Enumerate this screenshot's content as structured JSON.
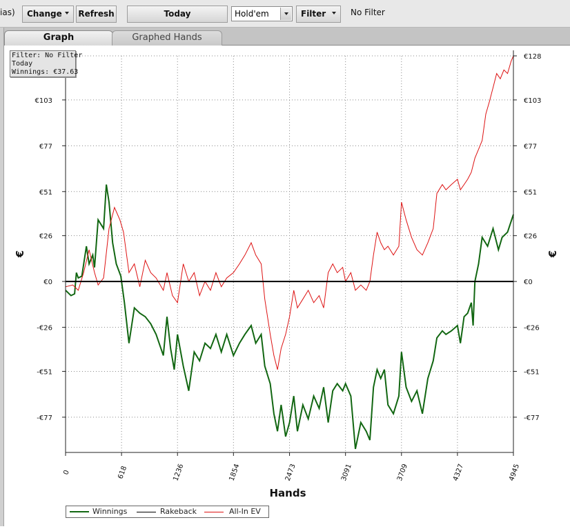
{
  "toolbar": {
    "alias_text": "ias)",
    "change_label": "Change",
    "refresh_label": "Refresh",
    "today_label": "Today",
    "game_value": "Hold'em",
    "filter_label": "Filter",
    "filter_status": "No Filter"
  },
  "tabs": [
    {
      "label": "Graph",
      "active": true
    },
    {
      "label": "Graphed Hands",
      "active": false
    }
  ],
  "info_box": {
    "filter": "Filter: No Filter",
    "period": "Today",
    "winnings": "Winnings: €37.63"
  },
  "colors": {
    "winnings": "#116611",
    "rakeback": "#000000",
    "allin_ev": "#dd1111",
    "grid": "#888888"
  },
  "chart_data": {
    "type": "line",
    "xlabel": "Hands",
    "ylabel": "€",
    "xlim": [
      0,
      4945
    ],
    "ylim": [
      -97,
      128
    ],
    "x_ticks": [
      0,
      618,
      1236,
      1854,
      2473,
      3091,
      3709,
      4327,
      4945
    ],
    "y_ticks": [
      {
        "value": 128,
        "label": "€128"
      },
      {
        "value": 103,
        "label": "€103"
      },
      {
        "value": 77,
        "label": "€77"
      },
      {
        "value": 51,
        "label": "€51"
      },
      {
        "value": 26,
        "label": "€26"
      },
      {
        "value": 0,
        "label": "€0"
      },
      {
        "value": -26,
        "label": "-€26"
      },
      {
        "value": -51,
        "label": "-€51"
      },
      {
        "value": -77,
        "label": "-€77"
      }
    ],
    "grid": true,
    "legend_position": "bottom-left",
    "series": [
      {
        "name": "Winnings",
        "points": [
          [
            0,
            -5
          ],
          [
            60,
            -8
          ],
          [
            100,
            -7
          ],
          [
            120,
            5
          ],
          [
            140,
            2
          ],
          [
            180,
            3
          ],
          [
            230,
            20
          ],
          [
            260,
            10
          ],
          [
            300,
            15
          ],
          [
            320,
            8
          ],
          [
            360,
            35
          ],
          [
            420,
            30
          ],
          [
            450,
            55
          ],
          [
            480,
            45
          ],
          [
            520,
            22
          ],
          [
            560,
            10
          ],
          [
            610,
            3
          ],
          [
            650,
            -12
          ],
          [
            700,
            -35
          ],
          [
            760,
            -15
          ],
          [
            820,
            -18
          ],
          [
            880,
            -20
          ],
          [
            940,
            -24
          ],
          [
            1000,
            -30
          ],
          [
            1080,
            -42
          ],
          [
            1120,
            -20
          ],
          [
            1160,
            -38
          ],
          [
            1200,
            -50
          ],
          [
            1236,
            -30
          ],
          [
            1300,
            -48
          ],
          [
            1360,
            -62
          ],
          [
            1420,
            -40
          ],
          [
            1480,
            -45
          ],
          [
            1540,
            -35
          ],
          [
            1600,
            -38
          ],
          [
            1660,
            -30
          ],
          [
            1720,
            -40
          ],
          [
            1780,
            -30
          ],
          [
            1854,
            -42
          ],
          [
            1920,
            -35
          ],
          [
            1980,
            -30
          ],
          [
            2050,
            -25
          ],
          [
            2100,
            -35
          ],
          [
            2160,
            -30
          ],
          [
            2200,
            -48
          ],
          [
            2260,
            -58
          ],
          [
            2300,
            -75
          ],
          [
            2340,
            -85
          ],
          [
            2380,
            -70
          ],
          [
            2430,
            -88
          ],
          [
            2473,
            -80
          ],
          [
            2520,
            -65
          ],
          [
            2560,
            -85
          ],
          [
            2620,
            -70
          ],
          [
            2680,
            -78
          ],
          [
            2740,
            -65
          ],
          [
            2800,
            -72
          ],
          [
            2850,
            -60
          ],
          [
            2900,
            -80
          ],
          [
            2950,
            -62
          ],
          [
            3000,
            -58
          ],
          [
            3060,
            -62
          ],
          [
            3091,
            -58
          ],
          [
            3150,
            -65
          ],
          [
            3200,
            -95
          ],
          [
            3260,
            -80
          ],
          [
            3320,
            -85
          ],
          [
            3360,
            -90
          ],
          [
            3400,
            -60
          ],
          [
            3440,
            -50
          ],
          [
            3480,
            -55
          ],
          [
            3520,
            -50
          ],
          [
            3560,
            -70
          ],
          [
            3620,
            -75
          ],
          [
            3680,
            -65
          ],
          [
            3709,
            -40
          ],
          [
            3760,
            -60
          ],
          [
            3820,
            -68
          ],
          [
            3880,
            -62
          ],
          [
            3940,
            -75
          ],
          [
            4000,
            -55
          ],
          [
            4060,
            -45
          ],
          [
            4100,
            -32
          ],
          [
            4160,
            -28
          ],
          [
            4200,
            -30
          ],
          [
            4260,
            -28
          ],
          [
            4327,
            -25
          ],
          [
            4360,
            -35
          ],
          [
            4400,
            -20
          ],
          [
            4440,
            -18
          ],
          [
            4480,
            -12
          ],
          [
            4500,
            -25
          ],
          [
            4520,
            0
          ],
          [
            4560,
            10
          ],
          [
            4600,
            25
          ],
          [
            4660,
            20
          ],
          [
            4720,
            30
          ],
          [
            4780,
            18
          ],
          [
            4820,
            25
          ],
          [
            4880,
            28
          ],
          [
            4945,
            38
          ]
        ]
      },
      {
        "name": "Rakeback",
        "points": [
          [
            0,
            0
          ],
          [
            4945,
            0
          ]
        ]
      },
      {
        "name": "All-In EV",
        "points": [
          [
            0,
            -3
          ],
          [
            80,
            -2
          ],
          [
            140,
            -5
          ],
          [
            200,
            5
          ],
          [
            260,
            18
          ],
          [
            320,
            5
          ],
          [
            360,
            -2
          ],
          [
            420,
            2
          ],
          [
            480,
            30
          ],
          [
            540,
            42
          ],
          [
            600,
            35
          ],
          [
            640,
            28
          ],
          [
            700,
            5
          ],
          [
            760,
            10
          ],
          [
            820,
            -3
          ],
          [
            880,
            12
          ],
          [
            940,
            5
          ],
          [
            1000,
            2
          ],
          [
            1080,
            -5
          ],
          [
            1120,
            5
          ],
          [
            1180,
            -8
          ],
          [
            1236,
            -12
          ],
          [
            1300,
            10
          ],
          [
            1360,
            0
          ],
          [
            1420,
            5
          ],
          [
            1480,
            -8
          ],
          [
            1540,
            0
          ],
          [
            1600,
            -5
          ],
          [
            1660,
            5
          ],
          [
            1720,
            -3
          ],
          [
            1780,
            2
          ],
          [
            1854,
            5
          ],
          [
            1920,
            10
          ],
          [
            1980,
            15
          ],
          [
            2050,
            22
          ],
          [
            2100,
            15
          ],
          [
            2160,
            10
          ],
          [
            2200,
            -10
          ],
          [
            2260,
            -30
          ],
          [
            2300,
            -42
          ],
          [
            2340,
            -50
          ],
          [
            2380,
            -38
          ],
          [
            2430,
            -30
          ],
          [
            2473,
            -20
          ],
          [
            2520,
            -5
          ],
          [
            2560,
            -15
          ],
          [
            2620,
            -10
          ],
          [
            2680,
            -5
          ],
          [
            2740,
            -12
          ],
          [
            2800,
            -8
          ],
          [
            2850,
            -15
          ],
          [
            2900,
            5
          ],
          [
            2950,
            10
          ],
          [
            3000,
            5
          ],
          [
            3060,
            8
          ],
          [
            3091,
            0
          ],
          [
            3150,
            5
          ],
          [
            3200,
            -5
          ],
          [
            3260,
            -2
          ],
          [
            3320,
            -5
          ],
          [
            3360,
            0
          ],
          [
            3400,
            15
          ],
          [
            3440,
            28
          ],
          [
            3480,
            22
          ],
          [
            3520,
            18
          ],
          [
            3560,
            20
          ],
          [
            3620,
            15
          ],
          [
            3680,
            20
          ],
          [
            3709,
            45
          ],
          [
            3760,
            35
          ],
          [
            3820,
            25
          ],
          [
            3880,
            18
          ],
          [
            3940,
            15
          ],
          [
            4000,
            22
          ],
          [
            4060,
            30
          ],
          [
            4100,
            50
          ],
          [
            4160,
            55
          ],
          [
            4200,
            52
          ],
          [
            4260,
            55
          ],
          [
            4327,
            58
          ],
          [
            4360,
            52
          ],
          [
            4400,
            55
          ],
          [
            4440,
            58
          ],
          [
            4480,
            62
          ],
          [
            4520,
            70
          ],
          [
            4560,
            75
          ],
          [
            4600,
            80
          ],
          [
            4640,
            95
          ],
          [
            4680,
            102
          ],
          [
            4720,
            110
          ],
          [
            4760,
            118
          ],
          [
            4800,
            115
          ],
          [
            4840,
            120
          ],
          [
            4880,
            118
          ],
          [
            4920,
            125
          ],
          [
            4945,
            128
          ]
        ]
      }
    ]
  }
}
